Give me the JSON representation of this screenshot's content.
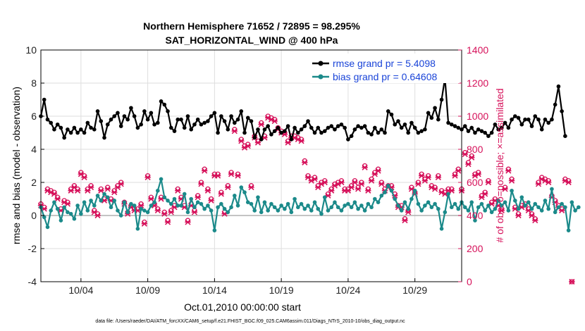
{
  "chart_data": {
    "type": "line",
    "title": "Northern Hemisphere 71652 / 72895 = 98.295%",
    "subtitle": "SAT_HORIZONTAL_WIND @ 400 hPa",
    "xlabel": "Oct.01,2010 00:00:00 start",
    "ylabel_left": "rmse and bias (model - observation)",
    "ylabel_right": "# of obs: o=possible; ×=assimilated",
    "footer": "data file: /Users/raeder/DAI/ATM_forcXX/CAM6_setup/f.e21.FHIST_BGC.f09_025.CAM6assim.011/Diags_NTrS_2010-10/obs_diag_output.nc",
    "xlim": [
      1.0,
      32.5
    ],
    "ylim_left": [
      -4,
      10
    ],
    "ylim_right": [
      0,
      1400
    ],
    "x_ticks": [
      4,
      9,
      14,
      19,
      24,
      29
    ],
    "x_tick_labels": [
      "10/04",
      "10/09",
      "10/14",
      "10/19",
      "10/24",
      "10/29"
    ],
    "y_left_ticks": [
      "-4",
      "-2",
      "0",
      "2",
      "4",
      "6",
      "8",
      "10"
    ],
    "y_right_ticks": [
      "0",
      "200",
      "400",
      "600",
      "800",
      "1000",
      "1200",
      "1400"
    ],
    "grid": true,
    "legend_position": "top-right",
    "colors": {
      "rmse": "#000000",
      "bias": "#1b8a8a",
      "obs": "#d6115a",
      "grid": "#dedede",
      "zero_line": "#b0b0b0"
    },
    "series": [
      {
        "name": "rmse grand pr = 5.4098",
        "axis": "left",
        "x_start": 1.0,
        "x_step": 0.25,
        "values": [
          6.0,
          7.0,
          5.8,
          5.6,
          5.2,
          5.5,
          5.3,
          4.7,
          5.2,
          5.0,
          5.3,
          5.0,
          5.2,
          5.0,
          5.6,
          5.3,
          5.2,
          6.3,
          5.7,
          4.7,
          5.5,
          5.8,
          6.0,
          6.2,
          5.4,
          6.0,
          5.8,
          6.5,
          6.0,
          5.3,
          5.5,
          6.3,
          5.8,
          6.2,
          5.5,
          5.6,
          6.9,
          6.7,
          6.3,
          5.3,
          5.1,
          5.8,
          5.8,
          5.3,
          6.0,
          5.2,
          5.5,
          5.8,
          5.5,
          5.6,
          5.7,
          6.0,
          6.2,
          5.0,
          6.0,
          5.7,
          5.2,
          6.0,
          5.6,
          5.8,
          6.3,
          5.0,
          5.9,
          5.7,
          4.7,
          5.2,
          4.6,
          5.2,
          5.4,
          4.9,
          5.1,
          5.3,
          5.0,
          5.1,
          5.4,
          4.6,
          5.3,
          5.0,
          5.2,
          5.4,
          5.7,
          5.3,
          5.0,
          5.3,
          5.0,
          5.1,
          5.3,
          5.4,
          5.2,
          5.4,
          5.5,
          5.3,
          4.6,
          4.8,
          5.2,
          5.4,
          5.3,
          5.4,
          5.0,
          4.9,
          5.3,
          5.0,
          5.2,
          5.0,
          6.3,
          6.1,
          5.5,
          5.7,
          5.3,
          5.5,
          5.0,
          5.6,
          5.3,
          5.0,
          5.1,
          5.2,
          6.2,
          5.9,
          6.5,
          5.8,
          7.0,
          8.3,
          5.6,
          5.5,
          5.4,
          5.3,
          5.2,
          5.4,
          5.1,
          5.3,
          5.0,
          5.2,
          5.1,
          5.0,
          4.8,
          5.0,
          5.5,
          5.2,
          5.3,
          5.6,
          5.3,
          5.8,
          6.0,
          5.9,
          5.5,
          5.8,
          5.8,
          5.4,
          6.0,
          5.8,
          5.2,
          5.8,
          5.6,
          5.8,
          6.7,
          7.8,
          6.3,
          4.8
        ]
      },
      {
        "name": "bias grand pr = 0.64608",
        "axis": "left",
        "x_start": 1.0,
        "x_step": 0.25,
        "values": [
          0.5,
          -0.1,
          -0.7,
          0.3,
          0.8,
          0.4,
          -0.3,
          0.5,
          0.2,
          0.1,
          -0.2,
          0.6,
          0.1,
          0.8,
          0.3,
          0.9,
          0.6,
          1.2,
          0.9,
          1.3,
          1.1,
          0.5,
          0.9,
          0.3,
          0.0,
          0.8,
          0.2,
          0.7,
          0.6,
          -0.8,
          0.4,
          0.3,
          0.2,
          0.6,
          0.8,
          1.5,
          2.2,
          1.1,
          0.9,
          0.7,
          1.0,
          0.6,
          0.6,
          1.3,
          0.2,
          1.0,
          0.5,
          0.8,
          0.7,
          0.4,
          0.6,
          0.3,
          -0.9,
          0.5,
          0.7,
          0.4,
          0.2,
          0.5,
          1.2,
          0.6,
          1.7,
          1.4,
          0.8,
          0.7,
          0.3,
          1.1,
          0.2,
          0.8,
          0.3,
          0.7,
          0.5,
          0.3,
          0.6,
          0.4,
          0.7,
          0.2,
          1.0,
          0.5,
          0.7,
          0.4,
          0.6,
          0.3,
          0.8,
          0.4,
          0.1,
          1.1,
          0.3,
          0.5,
          0.8,
          0.5,
          0.3,
          0.6,
          0.7,
          0.5,
          0.8,
          0.4,
          0.6,
          0.3,
          0.7,
          0.5,
          1.0,
          0.8,
          1.2,
          1.4,
          1.8,
          1.5,
          1.0,
          0.6,
          0.3,
          0.8,
          0.4,
          1.0,
          1.5,
          0.7,
          0.3,
          0.6,
          0.8,
          0.5,
          0.7,
          0.4,
          -0.8,
          0.2,
          1.3,
          0.5,
          0.7,
          0.4,
          0.8,
          0.5,
          0.3,
          0.8,
          -0.3,
          0.5,
          0.7,
          0.3,
          0.6,
          0.2,
          0.4,
          0.9,
          0.6,
          0.8,
          0.3,
          1.5,
          0.9,
          0.4,
          1.1,
          0.6,
          0.8,
          0.4,
          0.7,
          0.5,
          0.3,
          0.9,
          0.4,
          1.6,
          0.2,
          0.5,
          0.7,
          0.5,
          -0.9,
          0.8,
          0.3,
          0.5
        ]
      },
      {
        "name": "obs possible",
        "axis": "right",
        "marker": "o",
        "x_start": 1.0,
        "x_step": 0.25,
        "values": [
          470,
          450,
          560,
          550,
          540,
          510,
          440,
          490,
          480,
          560,
          580,
          560,
          660,
          640,
          560,
          580,
          430,
          410,
          560,
          500,
          570,
          500,
          550,
          580,
          600,
          480,
          420,
          460,
          440,
          440,
          470,
          360,
          640,
          510,
          470,
          440,
          510,
          420,
          370,
          430,
          460,
          560,
          510,
          460,
          370,
          470,
          430,
          520,
          600,
          680,
          560,
          500,
          650,
          650,
          540,
          420,
          580,
          660,
          920,
          650,
          860,
          820,
          830,
          580,
          880,
          850,
          960,
          880,
          1000,
          990,
          980,
          930,
          910,
          900,
          850,
          880,
          880,
          870,
          860,
          730,
          640,
          620,
          630,
          580,
          600,
          610,
          530,
          560,
          590,
          600,
          610,
          560,
          560,
          580,
          610,
          570,
          600,
          700,
          560,
          620,
          660,
          680,
          600,
          560,
          580,
          580,
          530,
          460,
          460,
          380,
          430,
          570,
          540,
          600,
          650,
          620,
          640,
          580,
          570,
          640,
          550,
          540,
          560,
          560,
          650,
          680,
          560,
          780,
          720,
          760,
          650,
          660,
          520,
          540,
          610,
          480,
          500,
          470,
          440,
          570,
          680,
          620,
          450,
          410,
          460,
          470,
          440,
          410,
          380,
          600,
          630,
          620,
          610,
          520,
          490,
          460,
          440,
          620,
          610,
          0
        ]
      },
      {
        "name": "obs assimilated",
        "axis": "right",
        "marker": "x",
        "x_start": 1.0,
        "x_step": 0.25,
        "values": [
          460,
          440,
          550,
          540,
          530,
          500,
          430,
          480,
          470,
          550,
          570,
          550,
          650,
          630,
          550,
          570,
          420,
          400,
          550,
          490,
          560,
          490,
          540,
          570,
          590,
          470,
          410,
          450,
          430,
          430,
          460,
          350,
          630,
          500,
          460,
          430,
          500,
          410,
          360,
          420,
          450,
          550,
          500,
          450,
          360,
          460,
          420,
          510,
          590,
          670,
          550,
          490,
          640,
          640,
          530,
          410,
          570,
          650,
          910,
          640,
          850,
          810,
          820,
          570,
          870,
          840,
          950,
          870,
          990,
          980,
          970,
          920,
          900,
          890,
          840,
          870,
          870,
          860,
          850,
          720,
          630,
          610,
          620,
          570,
          590,
          600,
          520,
          550,
          580,
          590,
          600,
          550,
          550,
          570,
          600,
          560,
          590,
          690,
          550,
          610,
          650,
          670,
          590,
          550,
          570,
          570,
          520,
          450,
          450,
          370,
          420,
          560,
          530,
          590,
          640,
          610,
          630,
          570,
          560,
          630,
          540,
          530,
          550,
          550,
          640,
          670,
          550,
          770,
          710,
          750,
          640,
          650,
          510,
          530,
          600,
          470,
          490,
          460,
          430,
          560,
          670,
          610,
          440,
          400,
          450,
          460,
          430,
          400,
          370,
          590,
          620,
          610,
          600,
          510,
          480,
          450,
          430,
          610,
          600,
          0
        ]
      }
    ]
  }
}
